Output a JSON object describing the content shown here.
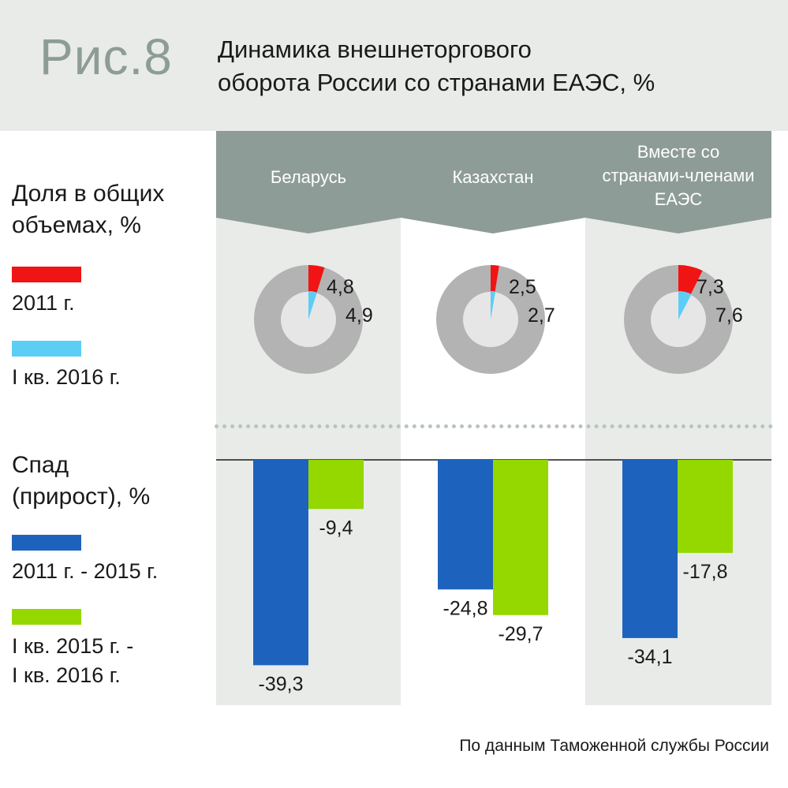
{
  "figure_label": "Рис.8",
  "title_lines": [
    "Динамика внешнеторгового",
    "оборота России со странами ЕАЭС, %"
  ],
  "legend": {
    "share_heading_lines": [
      "Доля в общих",
      "объемах, %"
    ],
    "share_items": [
      {
        "label": "2011 г.",
        "color": "#f01414"
      },
      {
        "label": "I кв. 2016 г.",
        "color": "#5ccdf5"
      }
    ],
    "change_heading_lines": [
      "Спад",
      "(прирост), %"
    ],
    "change_items": [
      {
        "label_lines": [
          "2011 г. - 2015 г."
        ],
        "color": "#1d63bd"
      },
      {
        "label_lines": [
          "I кв. 2015 г. -",
          "I кв. 2016 г."
        ],
        "color": "#94d800"
      }
    ]
  },
  "source": "По данным Таможенной службы России",
  "colors": {
    "panel": "#e8ebe8",
    "tab": "#8e9c98",
    "donut_ring": "#b3b3b3",
    "donut_hole": "#e6e6e6"
  },
  "chart_data": [
    {
      "type": "pie",
      "subtype": "donut",
      "categories": [
        "Беларусь",
        "Казахстан",
        "Вместе со странами-членами ЕАЭС"
      ],
      "category_label_lines": [
        [
          "Беларусь"
        ],
        [
          "Казахстан"
        ],
        [
          "Вместе со",
          "странами-членами",
          "ЕАЭС"
        ]
      ],
      "series": [
        {
          "name": "2011 г.",
          "values": [
            4.8,
            2.5,
            7.3
          ],
          "labels": [
            "4,8",
            "2,5",
            "7,3"
          ]
        },
        {
          "name": "I кв. 2016 г.",
          "values": [
            4.9,
            2.7,
            7.6
          ],
          "labels": [
            "4,9",
            "2,7",
            "7,6"
          ]
        }
      ]
    },
    {
      "type": "bar",
      "categories": [
        "Беларусь",
        "Казахстан",
        "Вместе со странами-членами ЕАЭС"
      ],
      "series": [
        {
          "name": "2011 г. - 2015 г.",
          "values": [
            -39.3,
            -24.8,
            -34.1
          ],
          "labels": [
            "-39,3",
            "-24,8",
            "-34,1"
          ]
        },
        {
          "name": "I кв. 2015 г. - I кв. 2016 г.",
          "values": [
            -9.4,
            -29.7,
            -17.8
          ],
          "labels": [
            "-9,4",
            "-29,7",
            "-17,8"
          ]
        }
      ],
      "ylim": [
        -40,
        0
      ],
      "grid": false
    }
  ]
}
